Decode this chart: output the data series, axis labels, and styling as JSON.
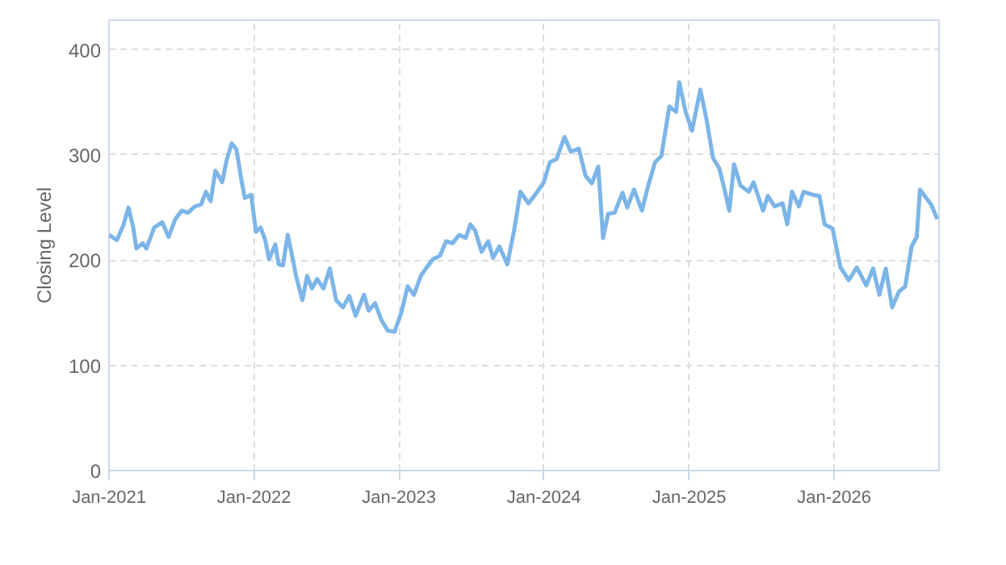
{
  "chart_data": {
    "type": "line",
    "ylabel": "Closing Level",
    "xlim": [
      "2021-01-01",
      "2026-09-22"
    ],
    "ylim": [
      0,
      428
    ],
    "xticks": [
      {
        "value": "2021-01-01",
        "label": "Jan-2021"
      },
      {
        "value": "2022-01-01",
        "label": "Jan-2022"
      },
      {
        "value": "2023-01-01",
        "label": "Jan-2023"
      },
      {
        "value": "2024-01-01",
        "label": "Jan-2024"
      },
      {
        "value": "2025-01-01",
        "label": "Jan-2025"
      },
      {
        "value": "2026-01-01",
        "label": "Jan-2026"
      }
    ],
    "yticks": [
      0,
      100,
      200,
      300,
      400
    ],
    "grid": true,
    "line_style": "solid",
    "x": [
      "2021-01-01",
      "2021-01-21",
      "2021-02-07",
      "2021-02-19",
      "2021-03-03",
      "2021-03-11",
      "2021-03-27",
      "2021-04-05",
      "2021-04-25",
      "2021-05-15",
      "2021-05-31",
      "2021-06-17",
      "2021-07-03",
      "2021-07-19",
      "2021-08-05",
      "2021-08-21",
      "2021-09-02",
      "2021-09-14",
      "2021-09-26",
      "2021-10-13",
      "2021-10-25",
      "2021-11-06",
      "2021-11-18",
      "2021-11-30",
      "2021-12-09",
      "2021-12-25",
      "2022-01-06",
      "2022-01-18",
      "2022-01-30",
      "2022-02-08",
      "2022-02-24",
      "2022-03-04",
      "2022-03-15",
      "2022-03-27",
      "2022-04-05",
      "2022-04-17",
      "2022-05-03",
      "2022-05-15",
      "2022-05-27",
      "2022-06-09",
      "2022-06-25",
      "2022-07-11",
      "2022-07-27",
      "2022-08-13",
      "2022-08-29",
      "2022-09-14",
      "2022-10-05",
      "2022-10-17",
      "2022-11-02",
      "2022-11-18",
      "2022-12-04",
      "2022-12-21",
      "2023-01-07",
      "2023-01-23",
      "2023-02-08",
      "2023-02-25",
      "2023-03-12",
      "2023-03-28",
      "2023-04-14",
      "2023-04-30",
      "2023-05-16",
      "2023-06-02",
      "2023-06-18",
      "2023-06-30",
      "2023-07-12",
      "2023-07-28",
      "2023-08-14",
      "2023-08-26",
      "2023-09-11",
      "2023-10-01",
      "2023-10-18",
      "2023-11-03",
      "2023-11-23",
      "2023-12-10",
      "2024-01-01",
      "2024-01-16",
      "2024-02-02",
      "2024-02-22",
      "2024-03-09",
      "2024-03-29",
      "2024-04-15",
      "2024-05-01",
      "2024-05-17",
      "2024-05-29",
      "2024-06-11",
      "2024-06-27",
      "2024-07-17",
      "2024-07-29",
      "2024-08-15",
      "2024-09-04",
      "2024-09-20",
      "2024-10-07",
      "2024-10-23",
      "2024-11-12",
      "2024-11-29",
      "2024-12-07",
      "2024-12-23",
      "2025-01-08",
      "2025-01-29",
      "2025-02-14",
      "2025-03-02",
      "2025-03-18",
      "2025-03-31",
      "2025-04-12",
      "2025-04-24",
      "2025-05-10",
      "2025-05-31",
      "2025-06-12",
      "2025-07-06",
      "2025-07-18",
      "2025-08-04",
      "2025-08-24",
      "2025-09-05",
      "2025-09-17",
      "2025-10-04",
      "2025-10-16",
      "2025-11-09",
      "2025-11-25",
      "2025-12-08",
      "2025-12-28",
      "2026-01-17",
      "2026-02-07",
      "2026-02-27",
      "2026-03-23",
      "2026-04-09",
      "2026-04-25",
      "2026-05-11",
      "2026-05-27",
      "2026-06-13",
      "2026-06-29",
      "2026-07-15",
      "2026-07-28",
      "2026-08-05",
      "2026-08-17",
      "2026-09-02",
      "2026-09-18"
    ],
    "series": [
      {
        "color": "#7cb5e8",
        "values": [
          224,
          219,
          234,
          250,
          231,
          211,
          216,
          211,
          231,
          236,
          222,
          239,
          247,
          245,
          251,
          253,
          265,
          256,
          285,
          274,
          296,
          311,
          305,
          277,
          259,
          262,
          227,
          231,
          218,
          201,
          215,
          196,
          195,
          224,
          208,
          185,
          162,
          185,
          173,
          182,
          173,
          192,
          162,
          155,
          166,
          147,
          167,
          152,
          159,
          143,
          133,
          132,
          150,
          175,
          167,
          185,
          193,
          201,
          204,
          218,
          216,
          224,
          221,
          234,
          228,
          208,
          218,
          202,
          213,
          196,
          228,
          265,
          254,
          262,
          274,
          293,
          296,
          317,
          303,
          306,
          280,
          273,
          289,
          221,
          244,
          245,
          264,
          250,
          267,
          247,
          271,
          293,
          299,
          346,
          341,
          369,
          341,
          323,
          362,
          333,
          297,
          287,
          267,
          247,
          291,
          271,
          265,
          274,
          247,
          261,
          251,
          254,
          234,
          265,
          251,
          265,
          262,
          261,
          234,
          230,
          193,
          181,
          193,
          176,
          192,
          167,
          192,
          155,
          170,
          175,
          213,
          222,
          267,
          261,
          253,
          239
        ]
      }
    ]
  }
}
